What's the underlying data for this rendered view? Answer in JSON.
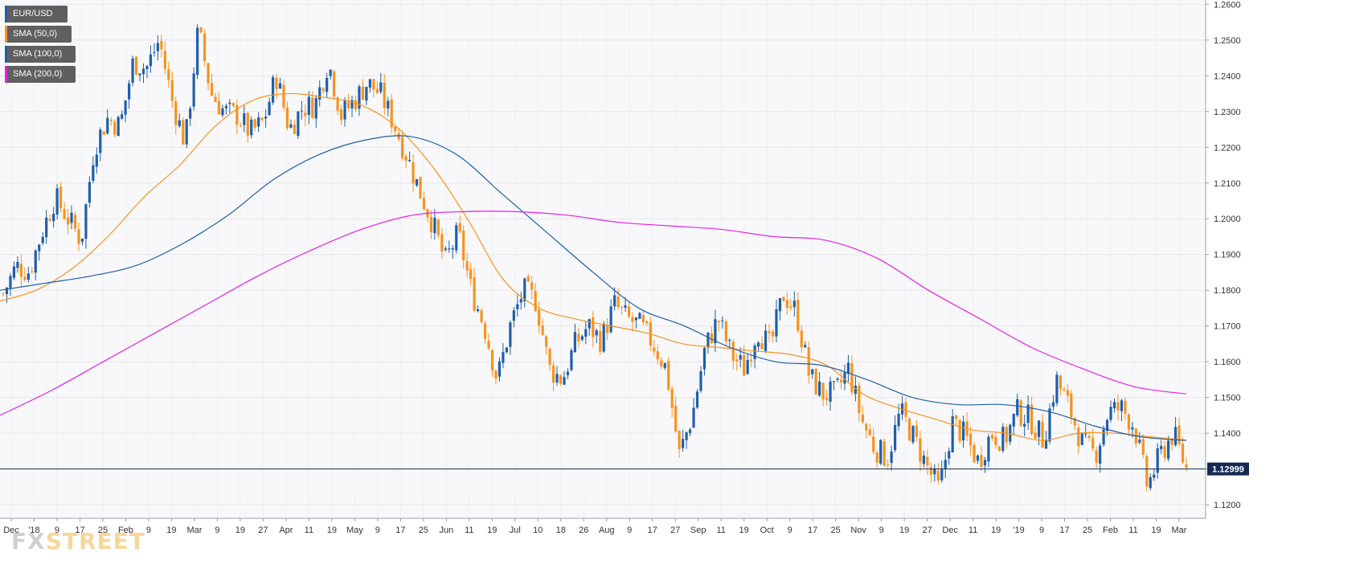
{
  "chart_data": {
    "type": "candlestick",
    "symbol": "EUR/USD",
    "ylim": [
      1.1162,
      1.2612
    ],
    "y_ticks": [
      "1.2600",
      "1.2500",
      "1.2400",
      "1.2300",
      "1.2200",
      "1.2100",
      "1.2000",
      "1.1900",
      "1.1800",
      "1.1700",
      "1.1600",
      "1.1500",
      "1.1400",
      "1.1300",
      "1.1200"
    ],
    "x_ticks": [
      "Dec",
      "'18",
      "9",
      "17",
      "25",
      "Feb",
      "9",
      "19",
      "Mar",
      "9",
      "19",
      "27",
      "Apr",
      "11",
      "19",
      "May",
      "9",
      "17",
      "25",
      "Jun",
      "11",
      "19",
      "Jul",
      "10",
      "18",
      "26",
      "Aug",
      "9",
      "17",
      "27",
      "Sep",
      "11",
      "19",
      "Oct",
      "9",
      "17",
      "25",
      "Nov",
      "9",
      "19",
      "27",
      "Dec",
      "11",
      "19",
      "'19",
      "9",
      "17",
      "25",
      "Feb",
      "11",
      "19",
      "Mar"
    ],
    "last_price": 1.13,
    "last_price_label": "1.12999",
    "grid": true,
    "legend_position": "top-left",
    "price_path": [
      1.179,
      1.1868,
      1.1852,
      1.1965,
      1.206,
      1.2,
      1.194,
      1.22,
      1.228,
      1.226,
      1.244,
      1.242,
      1.25,
      1.233,
      1.221,
      1.253,
      1.235,
      1.23,
      1.229,
      1.224,
      1.227,
      1.24,
      1.225,
      1.231,
      1.232,
      1.244,
      1.229,
      1.233,
      1.238,
      1.235,
      1.227,
      1.218,
      1.208,
      1.199,
      1.188,
      1.196,
      1.18,
      1.17,
      1.155,
      1.17,
      1.18,
      1.177,
      1.158,
      1.155,
      1.165,
      1.17,
      1.166,
      1.176,
      1.172,
      1.17,
      1.165,
      1.158,
      1.134,
      1.145,
      1.164,
      1.172,
      1.162,
      1.158,
      1.169,
      1.164,
      1.179,
      1.174,
      1.156,
      1.151,
      1.151,
      1.158,
      1.144,
      1.136,
      1.133,
      1.146,
      1.139,
      1.131,
      1.124,
      1.143,
      1.139,
      1.132,
      1.14,
      1.138,
      1.146,
      1.144,
      1.138,
      1.155,
      1.147,
      1.137,
      1.134,
      1.146,
      1.147,
      1.142,
      1.125,
      1.134,
      1.14,
      1.13
    ],
    "series": [
      {
        "name": "SMA (50,0)",
        "color": "#f7931e",
        "values": [
          1.177,
          1.18,
          1.186,
          1.195,
          1.206,
          1.215,
          1.226,
          1.233,
          1.235,
          1.234,
          1.232,
          1.226,
          1.215,
          1.2,
          1.183,
          1.175,
          1.172,
          1.17,
          1.168,
          1.165,
          1.164,
          1.163,
          1.162,
          1.159,
          1.151,
          1.147,
          1.144,
          1.141,
          1.14,
          1.138,
          1.14,
          1.14,
          1.139,
          1.138
        ]
      },
      {
        "name": "SMA (100,0)",
        "color": "#1f5faa",
        "values": [
          1.18,
          1.182,
          1.184,
          1.187,
          1.193,
          1.201,
          1.211,
          1.218,
          1.222,
          1.223,
          1.218,
          1.207,
          1.196,
          1.185,
          1.175,
          1.17,
          1.164,
          1.16,
          1.159,
          1.155,
          1.15,
          1.148,
          1.148,
          1.146,
          1.142,
          1.139,
          1.138
        ]
      },
      {
        "name": "SMA (200,0)",
        "color": "#e61ee6",
        "values": [
          1.145,
          1.152,
          1.16,
          1.168,
          1.176,
          1.184,
          1.191,
          1.197,
          1.201,
          1.202,
          1.202,
          1.201,
          1.199,
          1.198,
          1.197,
          1.195,
          1.194,
          1.189,
          1.18,
          1.172,
          1.164,
          1.158,
          1.153,
          1.151
        ]
      }
    ]
  },
  "legend": [
    {
      "label": "EUR/USD",
      "color": "#1f5faa"
    },
    {
      "label": "SMA (50,0)",
      "color": "#f7931e"
    },
    {
      "label": "SMA (100,0)",
      "color": "#1f5faa"
    },
    {
      "label": "SMA (200,0)",
      "color": "#e61ee6"
    }
  ],
  "colors": {
    "bull": "#1f5faa",
    "bear": "#f7931e",
    "last_line": "#152a52",
    "grid": "#e6e6ec"
  },
  "logo": {
    "fx": "FX",
    "street": "STREET"
  }
}
